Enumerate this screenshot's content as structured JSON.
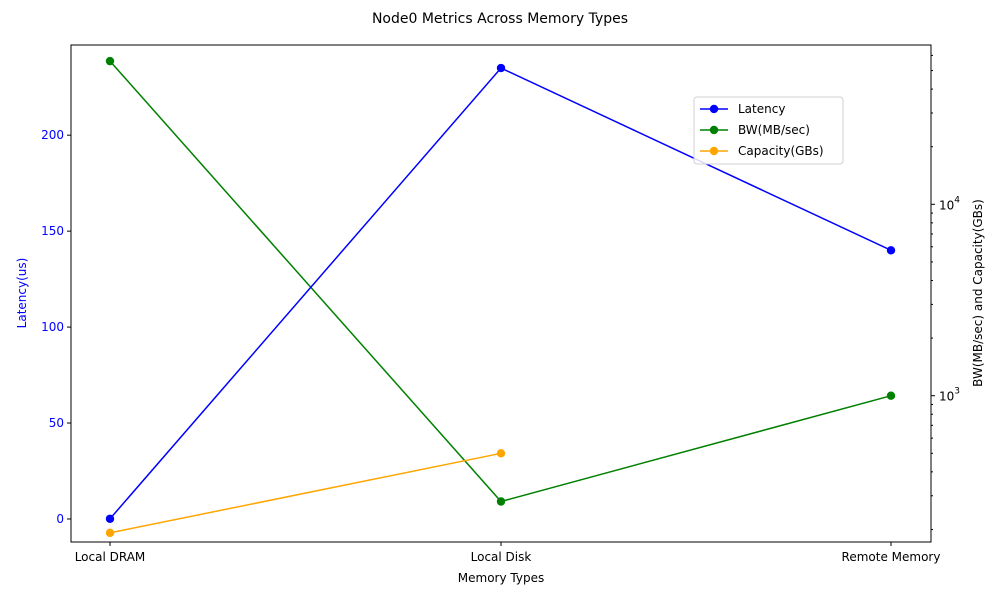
{
  "chart_data": {
    "type": "line",
    "title": "Node0 Metrics Across Memory Types",
    "xlabel": "Memory Types",
    "ylabel_left": "Latency(us)",
    "ylabel_right": "BW(MB/sec) and Capacity(GBs)",
    "categories": [
      "Local DRAM",
      "Local Disk",
      "Remote Memory"
    ],
    "left_axis": {
      "scale": "linear",
      "range": [
        -12,
        247
      ],
      "ticks": [
        0,
        50,
        100,
        150,
        200
      ],
      "tick_labels": [
        "0",
        "50",
        "100",
        "150",
        "200"
      ]
    },
    "right_axis": {
      "scale": "log",
      "range": [
        172,
        68000
      ],
      "major_ticks": [
        1000,
        10000
      ],
      "major_tick_labels": [
        "10",
        "10"
      ],
      "major_tick_exponents": [
        "3",
        "4"
      ]
    },
    "series": [
      {
        "name": "Latency",
        "axis": "left",
        "color": "#0000ff",
        "values": [
          0.1,
          235,
          140
        ]
      },
      {
        "name": "BW(MB/sec)",
        "axis": "right",
        "color": "#008000",
        "values": [
          56000,
          280,
          1000
        ]
      },
      {
        "name": "Capacity(GBs)",
        "axis": "right",
        "color": "#ffa500",
        "values": [
          192,
          500,
          null
        ]
      }
    ],
    "legend_position": "upper-right",
    "grid": false
  }
}
